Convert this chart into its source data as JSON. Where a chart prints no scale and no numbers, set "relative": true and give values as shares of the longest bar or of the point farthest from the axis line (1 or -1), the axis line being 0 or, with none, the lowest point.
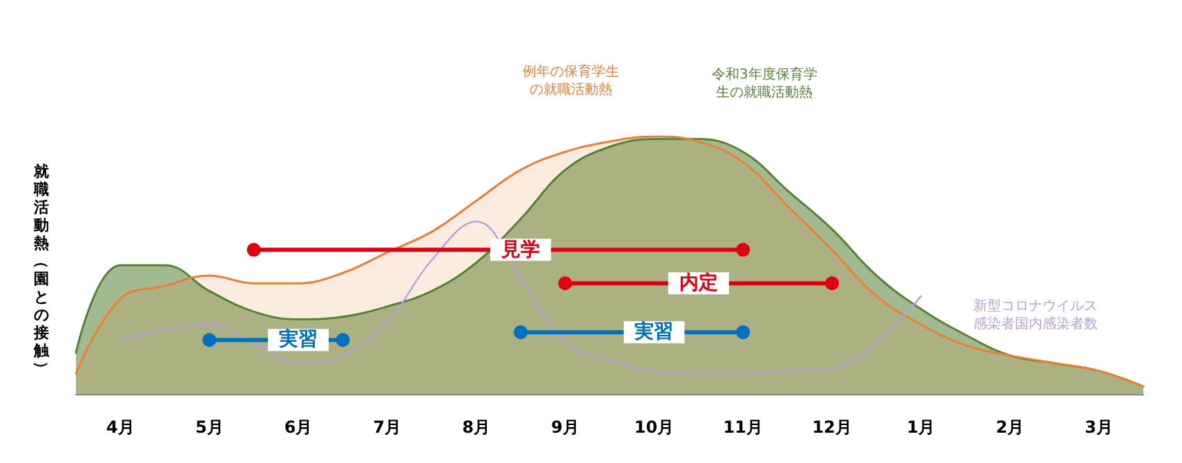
{
  "chart_data": {
    "type": "area",
    "relative": true,
    "ylabel": "就職活動熱（園との接触）",
    "legend": false,
    "grid": false,
    "categories": [
      null,
      "4月",
      null,
      "5月",
      null,
      "6月",
      null,
      "7月",
      null,
      "8月",
      null,
      "9月",
      null,
      "10月",
      null,
      "11月",
      null,
      "12月",
      null,
      "1月",
      null,
      "2月",
      null,
      "3月",
      null
    ],
    "series": [
      {
        "name": "令和3年度保育学生の就職活動熱",
        "type": "area",
        "color": "#548235",
        "marker": "none",
        "values": [
          0.16,
          0.5,
          0.5,
          0.4,
          0.32,
          0.29,
          0.3,
          0.34,
          0.4,
          0.51,
          0.68,
          0.87,
          0.96,
          0.99,
          0.99,
          0.94,
          0.79,
          0.64,
          0.46,
          0.33,
          0.23,
          0.15,
          0.12,
          0.09,
          0.03
        ]
      },
      {
        "name": "例年の保育学生の就職活動熱",
        "type": "area",
        "color": "#ed7d31",
        "marker": "none",
        "values": [
          0.08,
          0.37,
          0.42,
          0.46,
          0.43,
          0.43,
          0.47,
          0.55,
          0.63,
          0.75,
          0.87,
          0.94,
          0.98,
          1.0,
          0.98,
          0.9,
          0.73,
          0.56,
          0.38,
          0.27,
          0.19,
          0.15,
          0.12,
          0.09,
          0.03
        ]
      },
      {
        "name": "新型コロナウイルス感染者国内感染者数",
        "type": "line",
        "color": "#b4a0d8",
        "marker": "none",
        "values": [
          null,
          0.21,
          0.25,
          0.27,
          0.2,
          0.12,
          0.15,
          0.28,
          0.52,
          0.67,
          0.45,
          0.2,
          0.13,
          0.09,
          0.08,
          0.08,
          0.09,
          0.1,
          0.2,
          0.38,
          null,
          null,
          null,
          null,
          null
        ]
      },
      {
        "name": "見学",
        "type": "line",
        "color": "#e00010",
        "marker": "circle",
        "values": [
          null,
          null,
          null,
          null,
          0.56,
          null,
          null,
          null,
          null,
          null,
          null,
          null,
          null,
          null,
          null,
          0.56,
          null,
          null,
          null,
          null,
          null,
          null,
          null,
          null,
          null
        ]
      },
      {
        "name": "内定",
        "type": "line",
        "color": "#e00010",
        "marker": "circle",
        "values": [
          null,
          null,
          null,
          null,
          null,
          null,
          null,
          null,
          null,
          null,
          null,
          0.43,
          null,
          null,
          null,
          null,
          null,
          0.43,
          null,
          null,
          null,
          null,
          null,
          null,
          null
        ]
      },
      {
        "name": "実習",
        "type": "line",
        "color": "#0070c0",
        "marker": "circle",
        "values": [
          null,
          null,
          null,
          0.21,
          null,
          null,
          0.21,
          null,
          null,
          null,
          null,
          null,
          null,
          null,
          null,
          null,
          null,
          null,
          null,
          null,
          null,
          null,
          null,
          null,
          null
        ]
      },
      {
        "name": "実習",
        "type": "line",
        "color": "#0070c0",
        "marker": "circle",
        "values": [
          null,
          null,
          null,
          null,
          null,
          null,
          null,
          null,
          null,
          null,
          0.24,
          null,
          null,
          null,
          null,
          0.24,
          null,
          null,
          null,
          null,
          null,
          null,
          null,
          null,
          null
        ]
      }
    ]
  }
}
